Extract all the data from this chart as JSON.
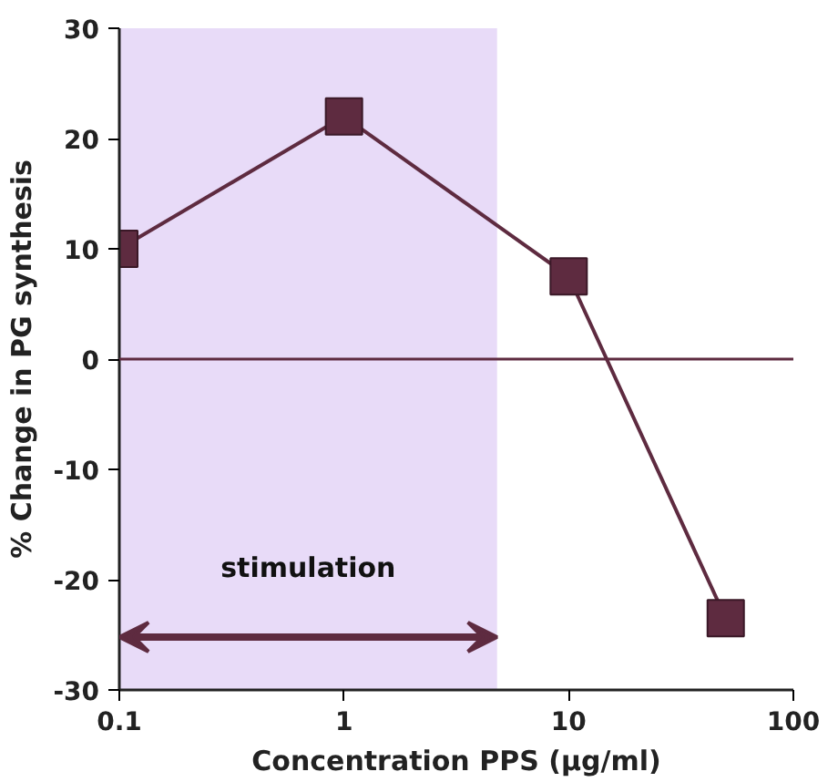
{
  "chart_data": {
    "type": "line",
    "xlabel": "Concentration PPS (µg/ml)",
    "ylabel": "% Change in PG synthesis",
    "x": [
      0.1,
      1,
      10,
      50
    ],
    "series": [
      {
        "color": "#5e2b40",
        "values": [
          10,
          22,
          7.5,
          -23.5
        ]
      }
    ],
    "log": "x",
    "marker": "square",
    "line_style": "solid",
    "grid": false,
    "xlim": [
      0.1,
      100
    ],
    "xticks": [
      0.1,
      1,
      10,
      100
    ],
    "ylim": [
      -30,
      30
    ],
    "yticks": [
      -30,
      -20,
      -10,
      0,
      10,
      20,
      30
    ],
    "ref_lines": [
      {
        "axis": "y",
        "value": 0,
        "color": "#5e2b40"
      }
    ],
    "bands": [
      {
        "axis": "x",
        "from": 0.1,
        "to": 4.8,
        "label": "stimulation",
        "color": "#e8dbf8"
      }
    ]
  }
}
